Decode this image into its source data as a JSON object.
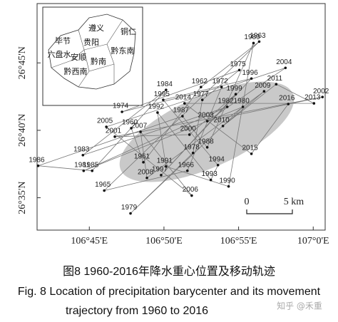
{
  "chart_data": {
    "type": "scatter",
    "xlim": [
      41.5,
      60.8
    ],
    "ylim": [
      32.6,
      49.4
    ],
    "xticks": [
      {
        "value": 45,
        "label": "106°45'E"
      },
      {
        "value": 50,
        "label": "106°50'E"
      },
      {
        "value": 55,
        "label": "106°55'E"
      },
      {
        "value": 60,
        "label": "107°0'E"
      }
    ],
    "yticks": [
      {
        "value": 35,
        "label": "26°35'N"
      },
      {
        "value": 40,
        "label": "26°40'N"
      },
      {
        "value": 45,
        "label": "26°45'N"
      }
    ],
    "point_color": "#111111",
    "line_color": "#777777",
    "labels": [
      "1960",
      "1961",
      "1962",
      "1963",
      "1965",
      "1966",
      "1972",
      "1974",
      "1975",
      "1977",
      "1978",
      "1979",
      "1980",
      "1981",
      "1982",
      "1983",
      "1984",
      "1985",
      "1986",
      "1987",
      "1988",
      "1989",
      "1990",
      "1991",
      "1992",
      "1993",
      "1994",
      "1995",
      "1996",
      "1997",
      "1999",
      "2000",
      "2001",
      "2002",
      "2003",
      "2004",
      "2005",
      "2006",
      "2007",
      "2008",
      "2009",
      "2010",
      "2011",
      "2013",
      "2014",
      "2015",
      "2016"
    ],
    "x": [
      47.81,
      48.62,
      52.48,
      56.38,
      46.0,
      51.57,
      53.86,
      47.19,
      55.05,
      52.57,
      51.95,
      47.76,
      55.29,
      44.62,
      54.24,
      44.57,
      50.14,
      45.19,
      41.57,
      51.24,
      52.9,
      56.0,
      54.33,
      50.14,
      49.57,
      53.14,
      53.62,
      49.95,
      55.86,
      49.81,
      54.81,
      51.71,
      46.71,
      60.62,
      52.9,
      58.14,
      46.14,
      51.86,
      48.43,
      48.86,
      56.71,
      53.95,
      57.52,
      60.05,
      51.38,
      55.86,
      58.33
    ],
    "y": [
      40.16,
      37.63,
      43.21,
      46.58,
      35.53,
      37.0,
      43.21,
      41.37,
      44.47,
      42.26,
      38.32,
      33.84,
      41.74,
      37.0,
      41.74,
      38.16,
      43.0,
      37.0,
      37.37,
      41.05,
      38.74,
      46.47,
      35.84,
      37.32,
      41.32,
      36.32,
      37.42,
      42.26,
      43.84,
      36.68,
      42.68,
      39.68,
      39.53,
      42.47,
      40.68,
      44.63,
      40.26,
      35.16,
      39.89,
      36.47,
      42.89,
      40.32,
      43.42,
      42.0,
      42.0,
      38.26,
      41.95
    ],
    "inset_labels": [
      "遵义",
      "铜仁",
      "毕节",
      "贵阳",
      "六盘水",
      "安顺",
      "黔南",
      "黔东南",
      "黔西南"
    ],
    "scale_bar": {
      "start_label": "0",
      "end_label": "5 km"
    },
    "caption_cn": "图8  1960-2016年降水重心位置及移动轨迹",
    "caption_en_1": "Fig. 8   Location of precipitation barycenter and its movement",
    "caption_en_2": "trajectory from 1960 to 2016",
    "watermark": "知乎 @禾重"
  }
}
